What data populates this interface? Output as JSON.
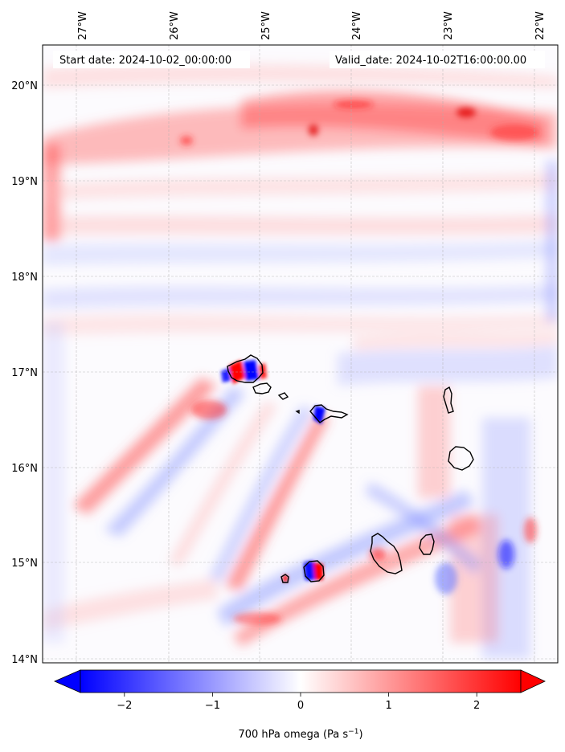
{
  "header": {
    "start_date": "Start date: 2024-10-02_00:00:00",
    "valid_date": "Valid_date: 2024-10-02T16:00:00.00"
  },
  "axes": {
    "lon_labels": [
      "27°W",
      "26°W",
      "25°W",
      "24°W",
      "23°W",
      "22°W"
    ],
    "lat_labels": [
      "20°N",
      "19°N",
      "18°N",
      "17°N",
      "16°N",
      "15°N",
      "14°N"
    ]
  },
  "colorbar": {
    "label_main": "700 hPa omega (Pa s",
    "label_exp": "−1",
    "label_close": ")",
    "ticks": [
      "−2",
      "−1",
      "0",
      "1",
      "2"
    ],
    "tick_values": [
      -2,
      -1,
      0,
      1,
      2
    ],
    "range": [
      -2.5,
      2.5
    ],
    "colormap": "bwr",
    "colors": {
      "negative": "#0000ff",
      "zero": "#ffffff",
      "positive": "#ff0000"
    }
  },
  "chart_data": {
    "type": "heatmap",
    "field": "700 hPa omega",
    "units": "Pa s−1",
    "lon_range": [
      -27.3,
      -21.8
    ],
    "lat_range": [
      14.0,
      20.4
    ],
    "islands": [
      "Santo Antão",
      "São Vicente",
      "Santa Luzia",
      "São Nicolau",
      "Sal",
      "Boa Vista",
      "Maio",
      "Santiago",
      "Fogo",
      "Brava"
    ]
  }
}
